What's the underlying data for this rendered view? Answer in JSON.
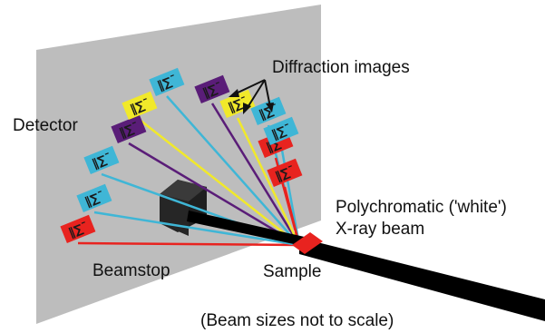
{
  "labels": {
    "diffraction_images": "Diffraction images",
    "detector": "Detector",
    "polychromatic_line1": "Polychromatic ('white')",
    "polychromatic_line2": "X-ray beam",
    "beamstop": "Beamstop",
    "sample": "Sample",
    "footnote": "(Beam sizes not to scale)"
  },
  "colors": {
    "detector_plate": "#bdbdbd",
    "beam": "#000000",
    "sample": "#e8231f",
    "beamstop": "#2b2b2b",
    "red": "#e8231f",
    "cyan": "#3fb6d6",
    "purple": "#5a1d78",
    "yellow": "#f1e92a"
  },
  "diffraction_spots": [
    {
      "color": "red"
    },
    {
      "color": "cyan"
    },
    {
      "color": "cyan"
    },
    {
      "color": "purple"
    },
    {
      "color": "yellow"
    },
    {
      "color": "cyan"
    },
    {
      "color": "purple"
    },
    {
      "color": "yellow"
    },
    {
      "color": "cyan"
    },
    {
      "color": "red"
    },
    {
      "color": "cyan"
    },
    {
      "color": "red"
    }
  ]
}
